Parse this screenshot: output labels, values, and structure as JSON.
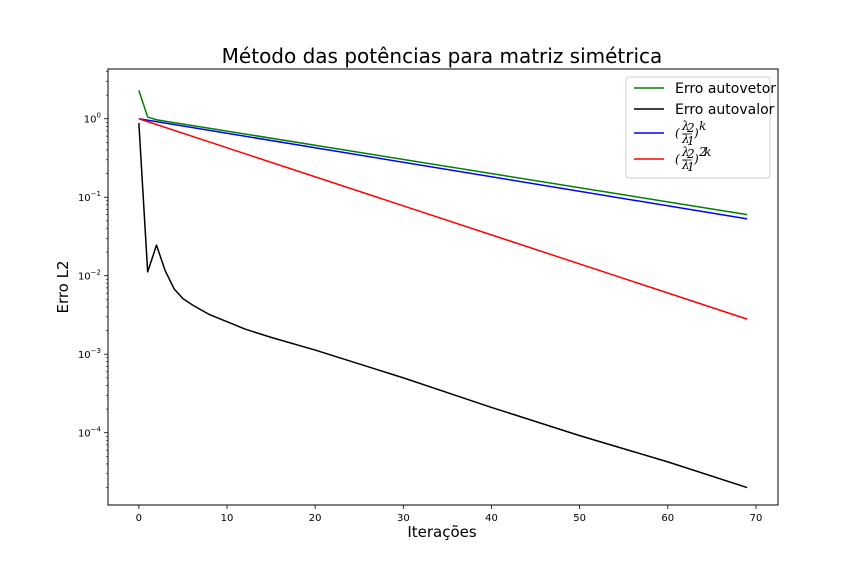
{
  "chart_data": {
    "type": "line",
    "title": "Método das potências para matriz simétrica",
    "xlabel": "Iterações",
    "ylabel": "Erro L2",
    "y_scale": "log",
    "xlim": [
      -3.5,
      72.5
    ],
    "ylim": [
      1.2e-05,
      4.3
    ],
    "x_ticks": [
      {
        "value": 0,
        "label": "0"
      },
      {
        "value": 10,
        "label": "10"
      },
      {
        "value": 20,
        "label": "20"
      },
      {
        "value": 30,
        "label": "30"
      },
      {
        "value": 40,
        "label": "40"
      },
      {
        "value": 50,
        "label": "50"
      },
      {
        "value": 60,
        "label": "60"
      },
      {
        "value": 70,
        "label": "70"
      }
    ],
    "y_ticks": [
      {
        "value": 1,
        "base": "10",
        "exp": "0"
      },
      {
        "value": 0.1,
        "base": "10",
        "exp": "−1"
      },
      {
        "value": 0.01,
        "base": "10",
        "exp": "−2"
      },
      {
        "value": 0.001,
        "base": "10",
        "exp": "−3"
      },
      {
        "value": 0.0001,
        "base": "10",
        "exp": "−4"
      }
    ],
    "grid": false,
    "legend_position": "top-right",
    "series": [
      {
        "name": "Erro autovetor",
        "color": "#008000",
        "points": [
          [
            0,
            2.3
          ],
          [
            1,
            1.05
          ],
          [
            2,
            0.97
          ],
          [
            3,
            0.93
          ],
          [
            69,
            0.06
          ]
        ]
      },
      {
        "name": "Erro autovalor",
        "color": "#000000",
        "points": [
          [
            0,
            0.88
          ],
          [
            1,
            0.0112
          ],
          [
            2,
            0.0245
          ],
          [
            3,
            0.0115
          ],
          [
            4,
            0.0068
          ],
          [
            5,
            0.0051
          ],
          [
            6,
            0.0043
          ],
          [
            7,
            0.0037
          ],
          [
            8,
            0.0032
          ],
          [
            10,
            0.0026
          ],
          [
            12,
            0.0021
          ],
          [
            15,
            0.00164
          ],
          [
            20,
            0.00113
          ],
          [
            30,
            0.0005
          ],
          [
            40,
            0.00021
          ],
          [
            50,
            9.18e-05
          ],
          [
            60,
            4.25e-05
          ],
          [
            69,
            2e-05
          ]
        ]
      },
      {
        "name": "(λ2/λ1)^k",
        "color": "#0000ff",
        "points": [
          [
            0,
            1.0
          ],
          [
            69,
            0.053
          ]
        ]
      },
      {
        "name": "(λ2/λ1)^2k",
        "color": "#ff0000",
        "points": [
          [
            0,
            1.0
          ],
          [
            69,
            0.0028
          ]
        ]
      }
    ]
  }
}
